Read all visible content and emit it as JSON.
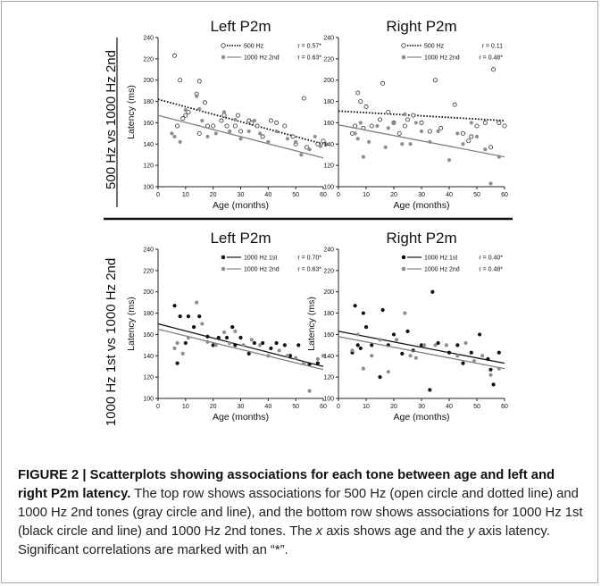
{
  "rows": [
    {
      "label": "500 Hz vs 1000 Hz 2nd"
    },
    {
      "label": "1000 Hz 1st vs 1000 Hz 2nd"
    }
  ],
  "colors": {
    "open": "#ffffff",
    "gray": "#8e8e8e",
    "black": "#111111",
    "line_gray": "#808080"
  },
  "chart_data": [
    {
      "type": "scatter",
      "title": "Left P2m",
      "xlabel": "Age (months)",
      "ylabel": "Latency (ms)",
      "xlim": [
        0,
        60
      ],
      "ylim": [
        100,
        240
      ],
      "xticks": [
        0,
        10,
        20,
        30,
        40,
        50,
        60
      ],
      "yticks": [
        100,
        120,
        140,
        160,
        180,
        200,
        220,
        240
      ],
      "legend_position": "top-right",
      "series": [
        {
          "name": "500 Hz",
          "r_label": "r = 0.57*",
          "style": "open",
          "line": "dotted",
          "fit": [
            182,
            140
          ],
          "points": [
            [
              6,
              223
            ],
            [
              7,
              157
            ],
            [
              8,
              200
            ],
            [
              9,
              164
            ],
            [
              10,
              167
            ],
            [
              11,
              170
            ],
            [
              14,
              187
            ],
            [
              15,
              199
            ],
            [
              15,
              150
            ],
            [
              17,
              179
            ],
            [
              18,
              157
            ],
            [
              20,
              157
            ],
            [
              23,
              162
            ],
            [
              24,
              167
            ],
            [
              25,
              157
            ],
            [
              28,
              157
            ],
            [
              29,
              167
            ],
            [
              30,
              152
            ],
            [
              33,
              162
            ],
            [
              34,
              160
            ],
            [
              36,
              157
            ],
            [
              38,
              147
            ],
            [
              41,
              162
            ],
            [
              43,
              160
            ],
            [
              46,
              157
            ],
            [
              49,
              147
            ],
            [
              50,
              140
            ],
            [
              53,
              183
            ],
            [
              54,
              137
            ],
            [
              58,
              140
            ],
            [
              60,
              143
            ]
          ]
        },
        {
          "name": "1000 Hz 2nd",
          "r_label": "r = 0.63*",
          "style": "gray",
          "line": "solid",
          "fit": [
            167,
            127
          ],
          "points": [
            [
              5,
              150
            ],
            [
              6,
              147
            ],
            [
              8,
              142
            ],
            [
              10,
              172
            ],
            [
              14,
              185
            ],
            [
              15,
              173
            ],
            [
              16,
              162
            ],
            [
              18,
              147
            ],
            [
              21,
              150
            ],
            [
              24,
              170
            ],
            [
              26,
              152
            ],
            [
              28,
              163
            ],
            [
              30,
              145
            ],
            [
              33,
              152
            ],
            [
              35,
              162
            ],
            [
              37,
              150
            ],
            [
              40,
              142
            ],
            [
              43,
              152
            ],
            [
              47,
              145
            ],
            [
              50,
              142
            ],
            [
              52,
              130
            ],
            [
              55,
              135
            ],
            [
              57,
              147
            ],
            [
              59,
              138
            ],
            [
              61,
              140
            ]
          ]
        }
      ]
    },
    {
      "type": "scatter",
      "title": "Right P2m",
      "xlabel": "Age (months)",
      "ylabel": "",
      "xlim": [
        0,
        60
      ],
      "ylim": [
        100,
        240
      ],
      "xticks": [
        0,
        10,
        20,
        30,
        40,
        50,
        60
      ],
      "yticks": [
        100,
        120,
        140,
        160,
        180,
        200,
        220,
        240
      ],
      "legend_position": "top-right",
      "series": [
        {
          "name": "500 Hz",
          "r_label": "r = 0.11",
          "style": "open",
          "line": "dotted",
          "fit": [
            171,
            162
          ],
          "points": [
            [
              5,
              150
            ],
            [
              6,
              157
            ],
            [
              7,
              188
            ],
            [
              8,
              180
            ],
            [
              9,
              155
            ],
            [
              10,
              175
            ],
            [
              12,
              157
            ],
            [
              15,
              163
            ],
            [
              16,
              197
            ],
            [
              18,
              170
            ],
            [
              20,
              160
            ],
            [
              22,
              150
            ],
            [
              24,
              157
            ],
            [
              25,
              163
            ],
            [
              27,
              167
            ],
            [
              30,
              160
            ],
            [
              33,
              152
            ],
            [
              35,
              200
            ],
            [
              37,
              155
            ],
            [
              42,
              177
            ],
            [
              45,
              150
            ],
            [
              47,
              143
            ],
            [
              48,
              147
            ],
            [
              50,
              157
            ],
            [
              53,
              160
            ],
            [
              55,
              137
            ],
            [
              56,
              210
            ],
            [
              58,
              160
            ],
            [
              60,
              157
            ]
          ]
        },
        {
          "name": "1000 Hz 2nd",
          "r_label": "r = 0.48*",
          "style": "gray",
          "line": "solid",
          "fit": [
            158,
            128
          ],
          "points": [
            [
              6,
              150
            ],
            [
              7,
              145
            ],
            [
              8,
              160
            ],
            [
              9,
              128
            ],
            [
              11,
              142
            ],
            [
              14,
              157
            ],
            [
              17,
              137
            ],
            [
              18,
              155
            ],
            [
              20,
              160
            ],
            [
              23,
              140
            ],
            [
              24,
              168
            ],
            [
              26,
              140
            ],
            [
              28,
              160
            ],
            [
              30,
              152
            ],
            [
              33,
              142
            ],
            [
              36,
              152
            ],
            [
              40,
              125
            ],
            [
              43,
              150
            ],
            [
              45,
              140
            ],
            [
              48,
              160
            ],
            [
              50,
              147
            ],
            [
              53,
              135
            ],
            [
              55,
              103
            ],
            [
              58,
              128
            ]
          ]
        }
      ]
    },
    {
      "type": "scatter",
      "title": "Left P2m",
      "xlabel": "Age (months)",
      "ylabel": "Latency (ms)",
      "xlim": [
        0,
        60
      ],
      "ylim": [
        100,
        240
      ],
      "xticks": [
        0,
        10,
        20,
        30,
        40,
        50,
        60
      ],
      "yticks": [
        100,
        120,
        140,
        160,
        180,
        200,
        220,
        240
      ],
      "legend_position": "top-right",
      "series": [
        {
          "name": "1000 Hz 1st",
          "r_label": "r = 0.70*",
          "style": "black",
          "line": "solid",
          "fit": [
            170,
            130
          ],
          "points": [
            [
              6,
              187
            ],
            [
              7,
              133
            ],
            [
              8,
              177
            ],
            [
              10,
              152
            ],
            [
              11,
              177
            ],
            [
              13,
              167
            ],
            [
              15,
              177
            ],
            [
              18,
              158
            ],
            [
              20,
              150
            ],
            [
              22,
              157
            ],
            [
              25,
              157
            ],
            [
              27,
              167
            ],
            [
              28,
              150
            ],
            [
              30,
              157
            ],
            [
              33,
              142
            ],
            [
              35,
              152
            ],
            [
              38,
              152
            ],
            [
              41,
              147
            ],
            [
              43,
              152
            ],
            [
              46,
              150
            ],
            [
              48,
              140
            ],
            [
              51,
              150
            ],
            [
              53,
              133
            ],
            [
              55,
              132
            ],
            [
              58,
              133
            ]
          ]
        },
        {
          "name": "1000 Hz 2nd",
          "r_label": "r = 0.63*",
          "style": "gray",
          "line": "solid",
          "fit": [
            165,
            127
          ],
          "points": [
            [
              6,
              147
            ],
            [
              7,
              152
            ],
            [
              9,
              142
            ],
            [
              11,
              157
            ],
            [
              14,
              190
            ],
            [
              16,
              170
            ],
            [
              18,
              153
            ],
            [
              21,
              150
            ],
            [
              24,
              162
            ],
            [
              26,
              152
            ],
            [
              28,
              163
            ],
            [
              31,
              150
            ],
            [
              34,
              155
            ],
            [
              37,
              150
            ],
            [
              40,
              140
            ],
            [
              44,
              145
            ],
            [
              47,
              140
            ],
            [
              50,
              138
            ],
            [
              53,
              133
            ],
            [
              55,
              107
            ],
            [
              58,
              137
            ],
            [
              60,
              140
            ]
          ]
        }
      ]
    },
    {
      "type": "scatter",
      "title": "Right P2m",
      "xlabel": "Age (months)",
      "ylabel": "Latency (ms)",
      "xlim": [
        0,
        60
      ],
      "ylim": [
        100,
        240
      ],
      "xticks": [
        0,
        10,
        20,
        30,
        40,
        50,
        60
      ],
      "yticks": [
        100,
        120,
        140,
        160,
        180,
        200,
        220,
        240
      ],
      "legend_position": "top-right",
      "series": [
        {
          "name": "1000 Hz 1st",
          "r_label": "r = 0.40*",
          "style": "black",
          "line": "solid",
          "fit": [
            163,
            133
          ],
          "points": [
            [
              5,
              143
            ],
            [
              6,
              187
            ],
            [
              7,
              150
            ],
            [
              8,
              147
            ],
            [
              9,
              180
            ],
            [
              10,
              167
            ],
            [
              12,
              150
            ],
            [
              15,
              120
            ],
            [
              16,
              183
            ],
            [
              18,
              150
            ],
            [
              20,
              160
            ],
            [
              23,
              142
            ],
            [
              25,
              163
            ],
            [
              27,
              145
            ],
            [
              30,
              150
            ],
            [
              33,
              108
            ],
            [
              34,
              200
            ],
            [
              36,
              152
            ],
            [
              40,
              143
            ],
            [
              43,
              150
            ],
            [
              45,
              133
            ],
            [
              48,
              143
            ],
            [
              51,
              160
            ],
            [
              54,
              137
            ],
            [
              55,
              127
            ],
            [
              56,
              113
            ],
            [
              58,
              143
            ]
          ]
        },
        {
          "name": "1000 Hz 2nd",
          "r_label": "r = 0.48*",
          "style": "gray",
          "line": "solid",
          "fit": [
            158,
            128
          ],
          "points": [
            [
              5,
              145
            ],
            [
              7,
              160
            ],
            [
              9,
              128
            ],
            [
              12,
              140
            ],
            [
              15,
              155
            ],
            [
              18,
              125
            ],
            [
              21,
              155
            ],
            [
              24,
              180
            ],
            [
              26,
              140
            ],
            [
              28,
              138
            ],
            [
              31,
              150
            ],
            [
              35,
              150
            ],
            [
              39,
              150
            ],
            [
              43,
              140
            ],
            [
              46,
              152
            ],
            [
              49,
              135
            ],
            [
              52,
              140
            ],
            [
              55,
              122
            ],
            [
              58,
              128
            ]
          ]
        }
      ]
    }
  ],
  "caption": {
    "bold": "FIGURE 2 | Scatterplots showing associations for each tone between age and left and right P2m latency.",
    "p1": " The top row shows associations for 500 Hz (open circle and dotted line) and 1000 Hz 2nd tones (gray circle and line), and the bottom row shows associations for 1000 Hz 1st (black circle and line) and 1000 Hz 2nd tones. The ",
    "x": "x",
    "p2": " axis shows age and the ",
    "y": "y",
    "p3": " axis latency. Significant correlations are marked with an “*”."
  }
}
